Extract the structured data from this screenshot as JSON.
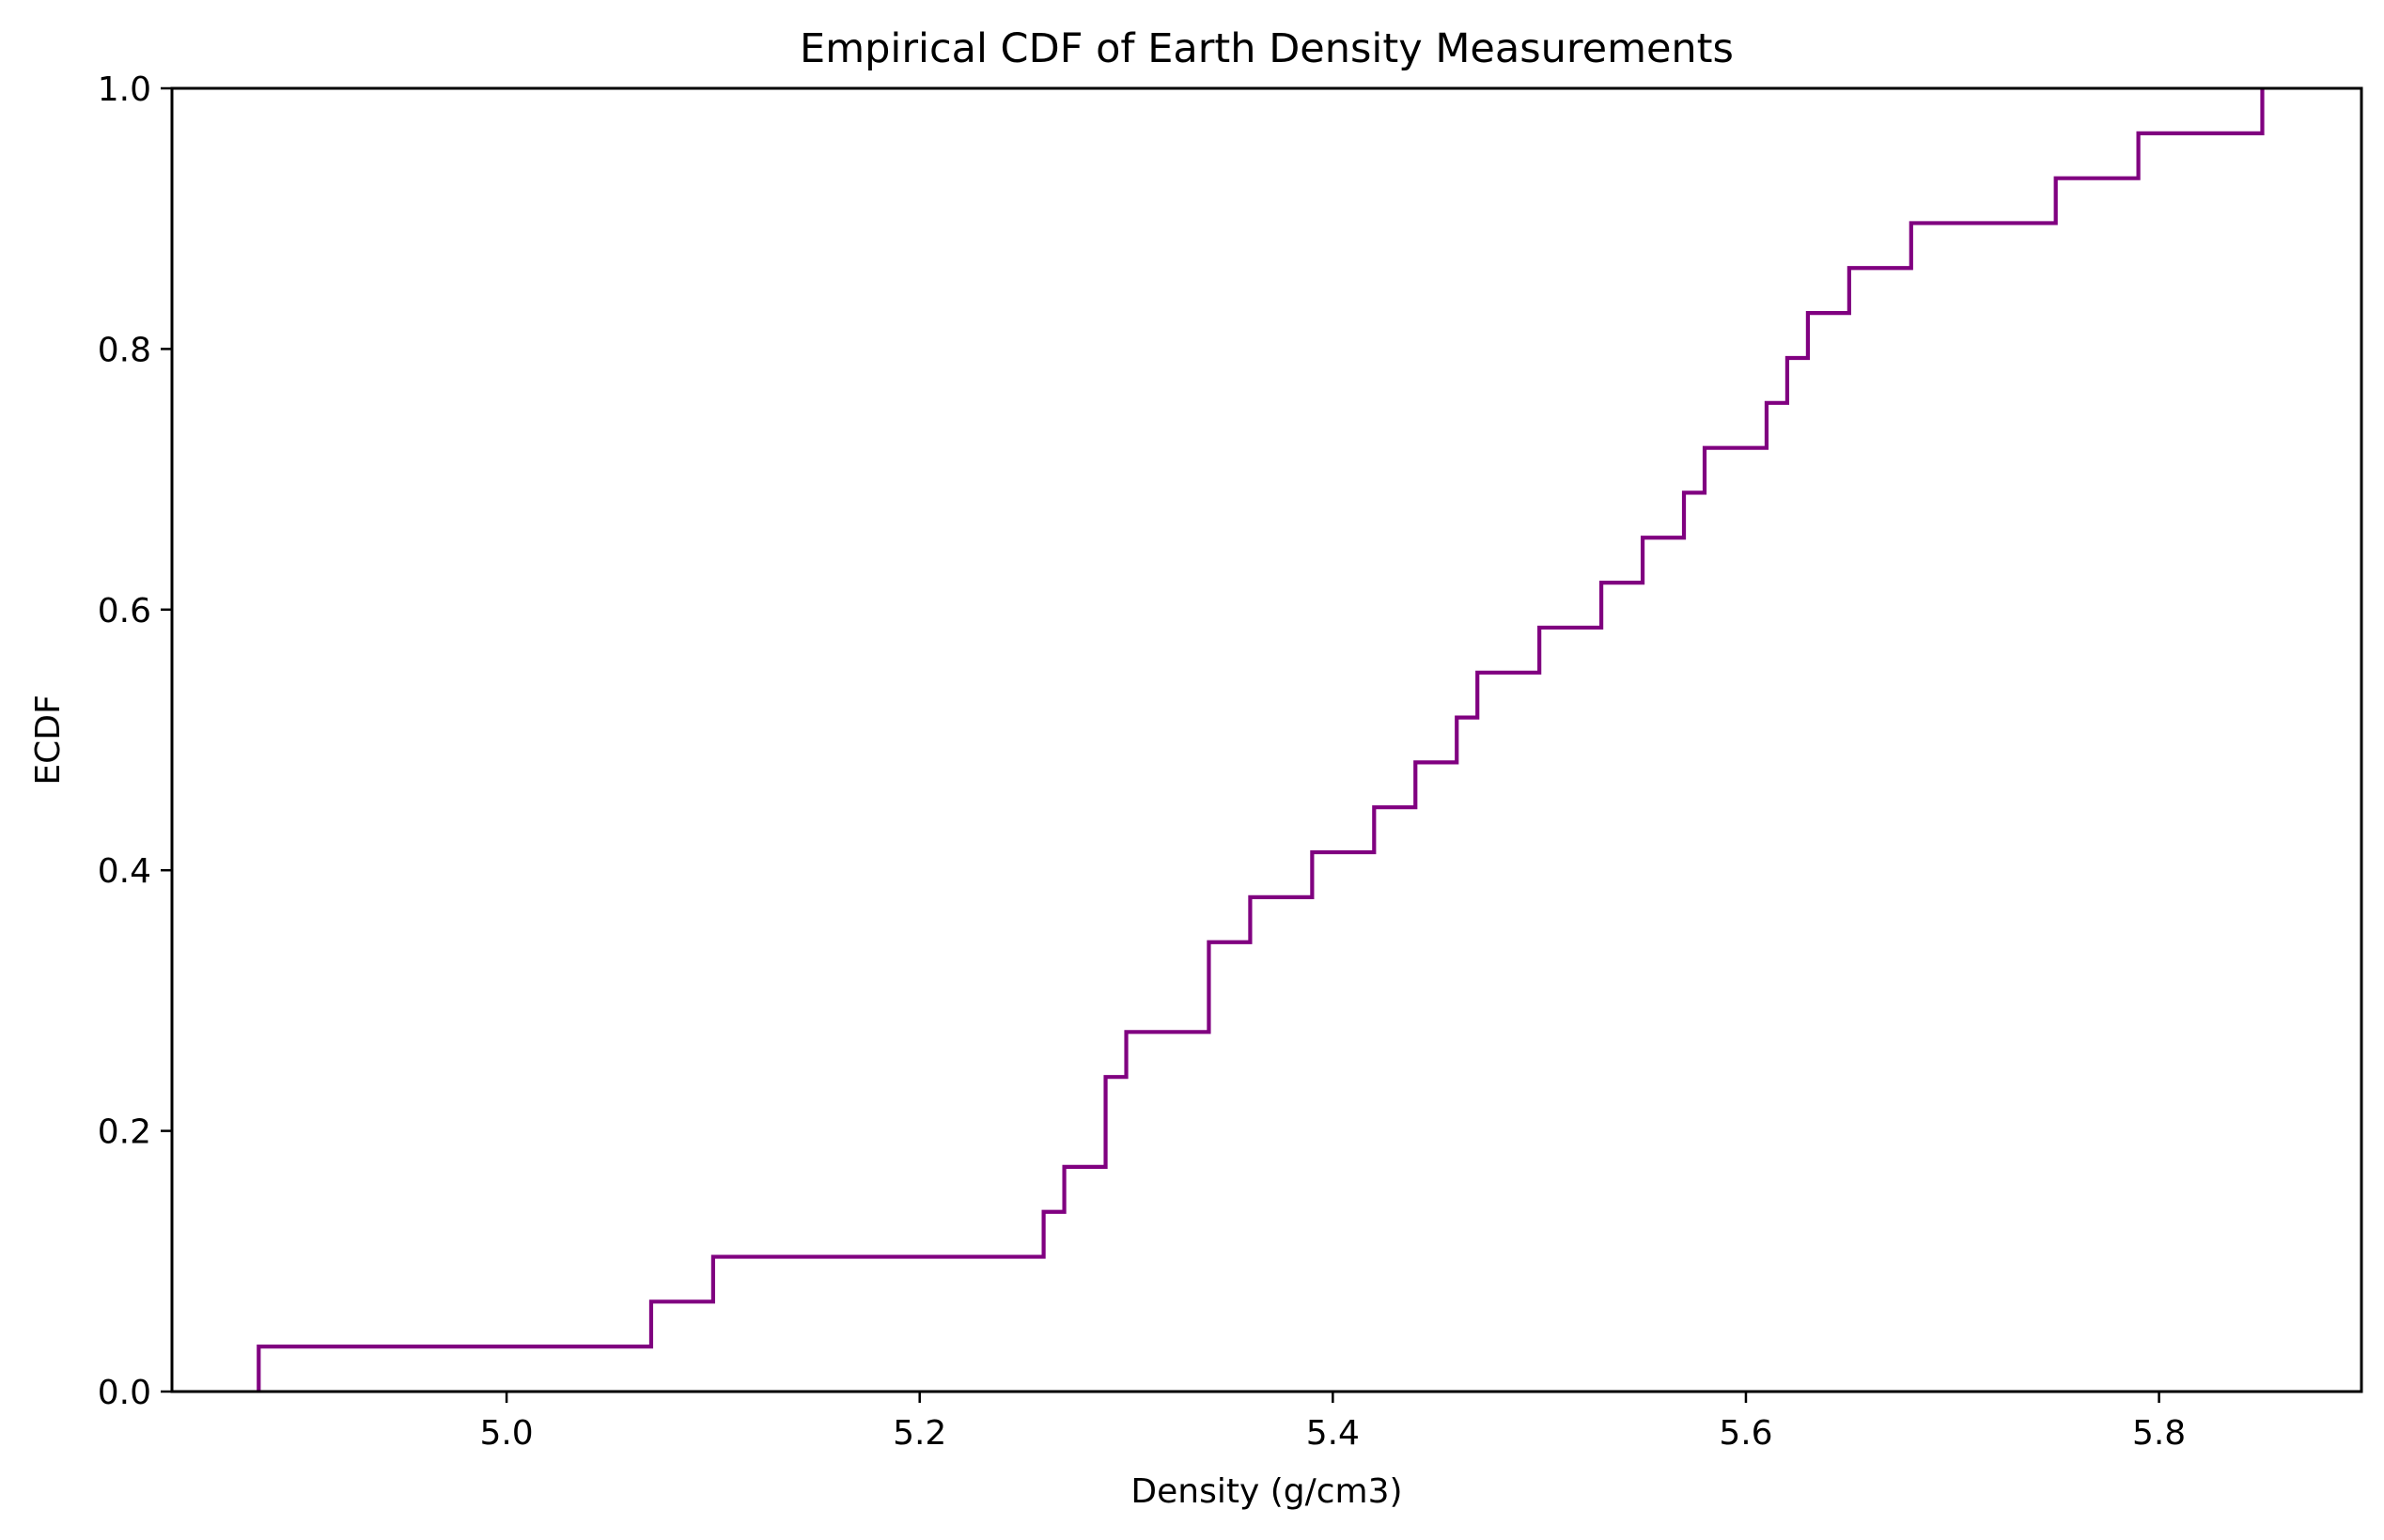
{
  "chart_data": {
    "type": "line",
    "step": "post",
    "title": "Empirical CDF of Earth Density Measurements",
    "xlabel": "Density (g/cm3)",
    "ylabel": "ECDF",
    "xlim": [
      4.838,
      5.898
    ],
    "ylim": [
      0.0,
      1.0
    ],
    "xticks": [
      5.0,
      5.2,
      5.4,
      5.6,
      5.8
    ],
    "xtick_labels": [
      "5.0",
      "5.2",
      "5.4",
      "5.6",
      "5.8"
    ],
    "yticks": [
      0.0,
      0.2,
      0.4,
      0.6,
      0.8,
      1.0
    ],
    "ytick_labels": [
      "0.0",
      "0.2",
      "0.4",
      "0.6",
      "0.8",
      "1.0"
    ],
    "grid": false,
    "color": "#800080",
    "series": [
      {
        "x": [
          4.88,
          5.07,
          5.1,
          5.26,
          5.27,
          5.29,
          5.29,
          5.3,
          5.34,
          5.34,
          5.36,
          5.39,
          5.42,
          5.44,
          5.46,
          5.47,
          5.5,
          5.53,
          5.55,
          5.57,
          5.58,
          5.61,
          5.62,
          5.63,
          5.65,
          5.68,
          5.75,
          5.79,
          5.85
        ],
        "y": [
          0.0345,
          0.069,
          0.1034,
          0.1379,
          0.1724,
          0.2069,
          0.2414,
          0.2759,
          0.3103,
          0.3448,
          0.3793,
          0.4138,
          0.4483,
          0.4828,
          0.5172,
          0.5517,
          0.5862,
          0.6207,
          0.6552,
          0.6897,
          0.7241,
          0.7586,
          0.7931,
          0.8276,
          0.8621,
          0.8966,
          0.931,
          0.9655,
          1.0
        ]
      }
    ]
  }
}
